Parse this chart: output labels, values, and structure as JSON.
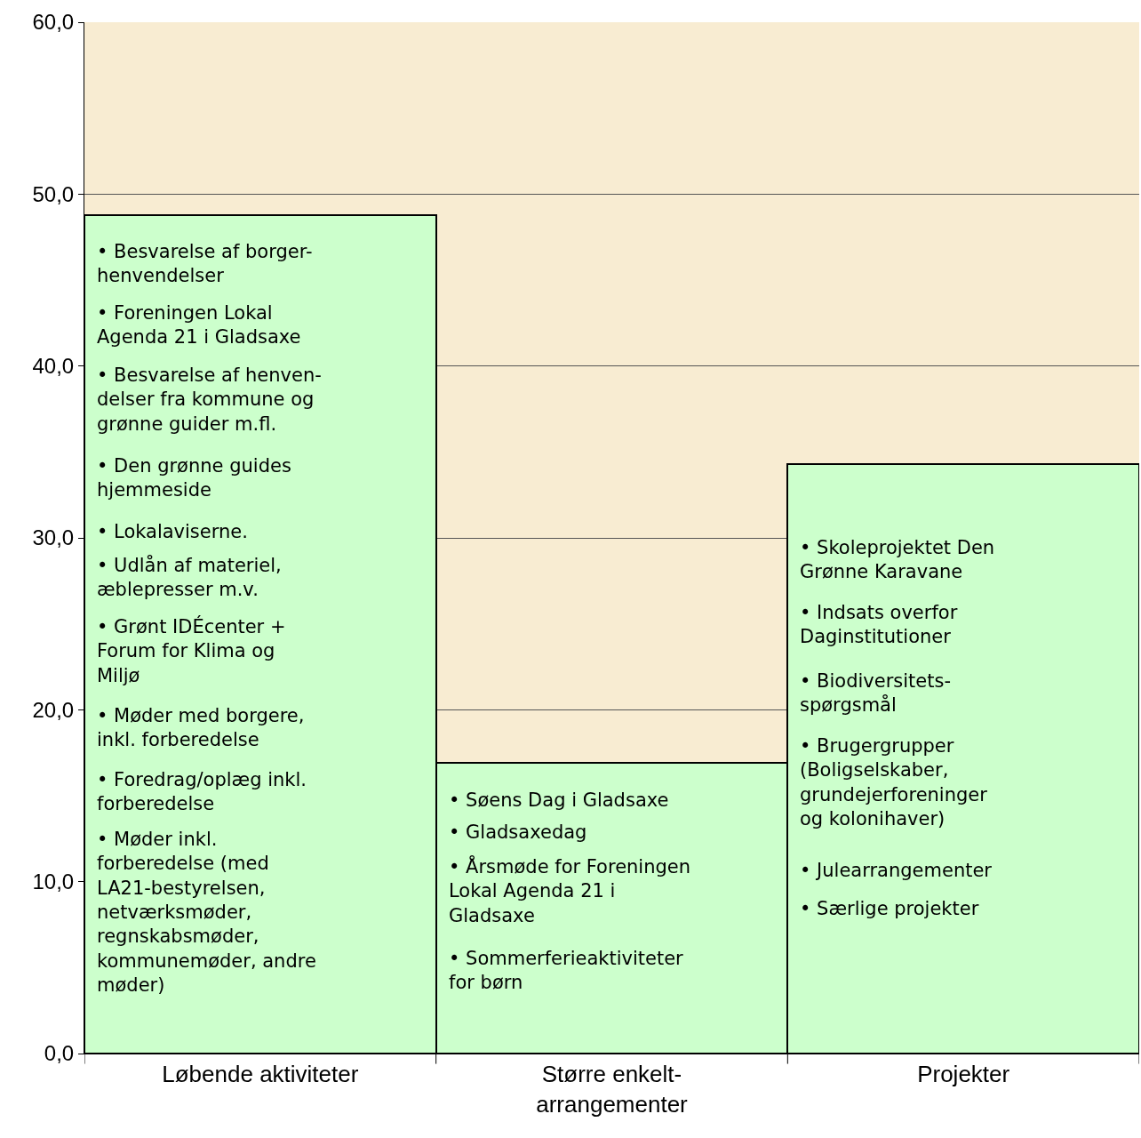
{
  "chart_data": {
    "type": "bar",
    "categories": [
      "Løbende aktiviteter",
      "Større enkelt-\narrangementer",
      "Projekter"
    ],
    "values": [
      48.8,
      16.9,
      34.3
    ],
    "color": "#ccffcc",
    "ylim": [
      0,
      60
    ],
    "yticks": [
      {
        "value": 0,
        "label": "0,0"
      },
      {
        "value": 10,
        "label": "10,0"
      },
      {
        "value": 20,
        "label": "20,0"
      },
      {
        "value": 30,
        "label": "30,0"
      },
      {
        "value": 40,
        "label": "40,0"
      },
      {
        "value": 50,
        "label": "50,0"
      },
      {
        "value": 60,
        "label": "60,0"
      }
    ],
    "grid": "y",
    "bands": [
      {
        "axis": "y",
        "from": 0,
        "to": 60,
        "color": "#f8ecd2"
      }
    ],
    "annotations": [
      "• Besvarelse af borger-\nhenvendelser",
      "• Foreningen Lokal\nAgenda 21 i Gladsaxe",
      "• Besvarelse af henven-\ndelser fra kommune og\ngrønne guider m.fl.",
      "• Den grønne guides\nhjemmeside",
      "• Lokalaviserne.",
      "• Udlån af materiel,\næblepresser m.v.",
      "• Grønt IDÉcenter +\nForum for Klima og\nMiljø",
      "• Møder med borgere,\ninkl. forberedelse",
      "• Foredrag/oplæg inkl.\nforberedelse",
      "• Møder inkl.\nforberedelse (med\nLA21-bestyrelsen,\nnetværksmøder,\nregnskabsmøder,\nkommunemøder, andre\nmøder)",
      "• Søens Dag i Gladsaxe",
      "• Gladsaxedag",
      "• Årsmøde for Foreningen\nLokal Agenda 21 i\nGladsaxe",
      "• Sommerferieaktiviteter\nfor børn",
      "• Skoleprojektet Den\nGrønne Karavane",
      "• Indsats overfor\nDaginstitutioner",
      "• Biodiversitets-\nspørgsmål",
      "• Brugergrupper\n(Boligselskaber,\ngrundejerforeninger\nog kolonihaver)",
      "• Julearrangementer",
      "• Særlige projekter"
    ]
  }
}
